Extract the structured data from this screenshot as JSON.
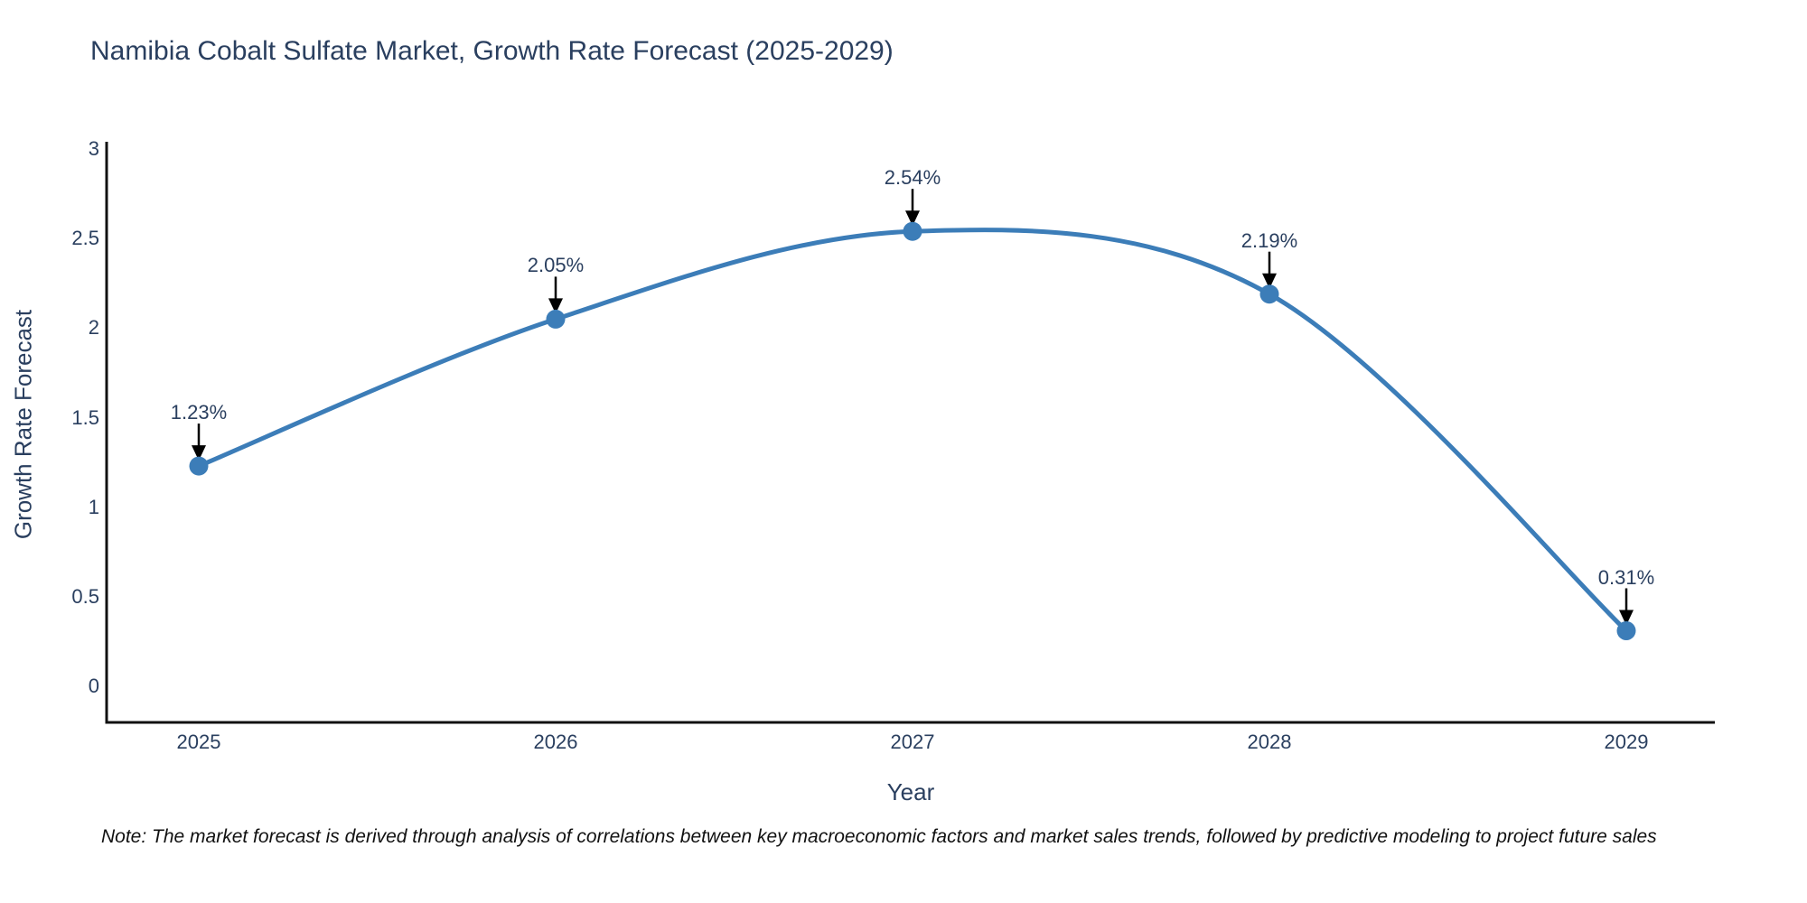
{
  "chart_data": {
    "type": "line",
    "title": "Namibia Cobalt Sulfate Market, Growth Rate Forecast (2025-2029)",
    "xlabel": "Year",
    "ylabel": "Growth Rate Forecast",
    "x": [
      "2025",
      "2026",
      "2027",
      "2028",
      "2029"
    ],
    "values": [
      1.23,
      2.05,
      2.54,
      2.19,
      0.31
    ],
    "point_labels": [
      "1.23%",
      "2.05%",
      "2.54%",
      "2.19%",
      "0.31%"
    ],
    "y_ticks": [
      {
        "value": 0,
        "label": "0"
      },
      {
        "value": 0.5,
        "label": "0.5"
      },
      {
        "value": 1,
        "label": "1"
      },
      {
        "value": 1.5,
        "label": "1.5"
      },
      {
        "value": 2,
        "label": "2"
      },
      {
        "value": 2.5,
        "label": "2.5"
      },
      {
        "value": 3,
        "label": "3"
      }
    ],
    "ylim": [
      -0.2,
      3.04
    ],
    "line_shape": "spline",
    "grid": false,
    "legend_position": "none",
    "colors": {
      "line": "#3c7db8",
      "marker": "#3c7db8",
      "axis": "#111111",
      "text": "#2a3f5f",
      "arrow": "#000000",
      "background": "#ffffff"
    },
    "note": "Note: The market forecast is derived through analysis of correlations between key macroeconomic factors and market sales trends, followed by predictive modeling to project future sales"
  }
}
